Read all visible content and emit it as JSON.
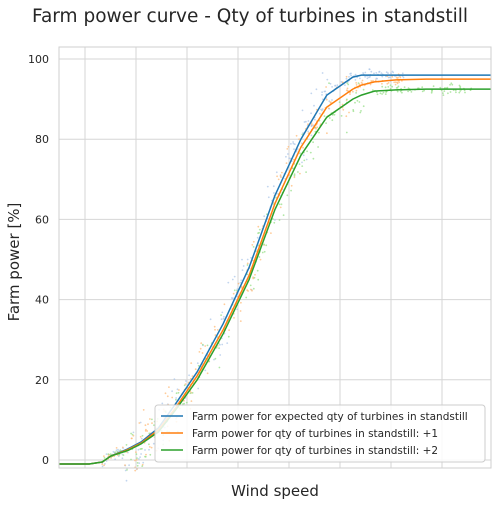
{
  "chart_data": {
    "type": "line",
    "title": "Farm power curve - Qty of turbines in standstill",
    "xlabel": "Wind speed",
    "ylabel": "Farm power [%]",
    "ylim": [
      -2,
      103
    ],
    "yticks": [
      0,
      20,
      40,
      60,
      80,
      100
    ],
    "x_tick_labels_shown": false,
    "grid": true,
    "legend_placement": "lower-right",
    "x": [
      0,
      7,
      10,
      12,
      16,
      19,
      23,
      27,
      32,
      38,
      44,
      50,
      56,
      62,
      68,
      70,
      73,
      78,
      85,
      100
    ],
    "series": [
      {
        "name": "Farm power for expected qty of turbines in standstill",
        "color": "#1f77b4",
        "values": [
          -1.0,
          -1.0,
          -0.5,
          1.0,
          2.8,
          4.5,
          8.0,
          14.0,
          22.0,
          34.0,
          48.0,
          66.0,
          80.0,
          91.0,
          95.5,
          96.0,
          96.0,
          96.0,
          96.0,
          96.0
        ]
      },
      {
        "name": "Farm power for qty of turbines in standstill: +1",
        "color": "#ff7f0e",
        "values": [
          -1.0,
          -1.0,
          -0.5,
          1.0,
          2.6,
          4.2,
          7.5,
          13.0,
          21.0,
          32.5,
          46.0,
          64.0,
          78.0,
          88.0,
          92.5,
          93.5,
          94.3,
          94.8,
          95.0,
          95.0
        ]
      },
      {
        "name": "Farm power for qty of turbines in standstill: +2",
        "color": "#2ca02c",
        "values": [
          -1.0,
          -1.0,
          -0.5,
          1.0,
          2.4,
          4.0,
          7.0,
          12.5,
          20.0,
          31.5,
          45.0,
          62.5,
          76.0,
          85.5,
          90.0,
          91.0,
          92.0,
          92.3,
          92.5,
          92.5
        ]
      }
    ]
  }
}
